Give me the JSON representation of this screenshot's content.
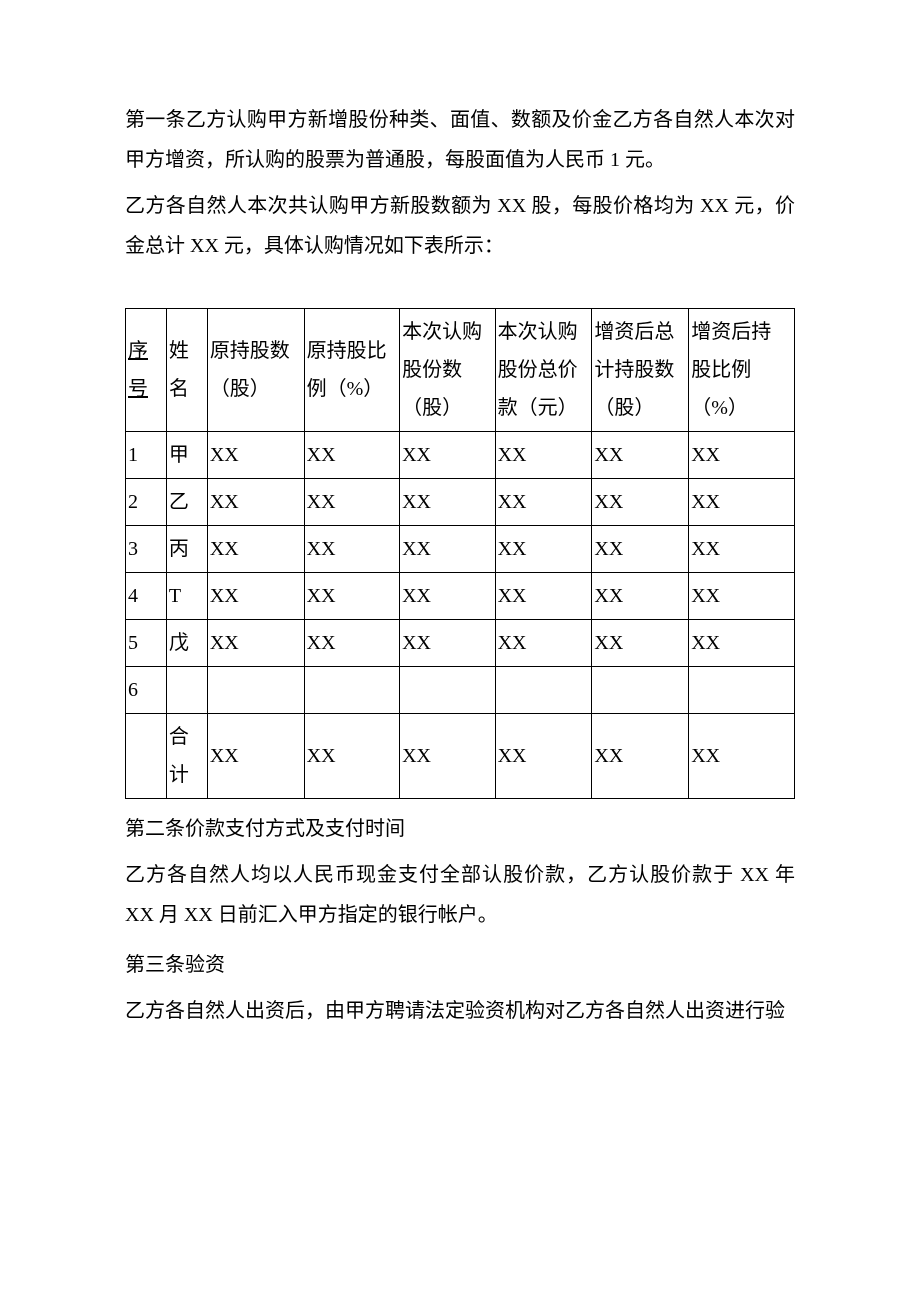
{
  "para1": "第一条乙方认购甲方新增股份种类、面值、数额及价金乙方各自然人本次对甲方增资，所认购的股票为普通股，每股面值为人民币 1 元。",
  "para2": "乙方各自然人本次共认购甲方新股数额为 XX 股，每股价格均为 XX 元，价金总计 XX 元，具体认购情况如下表所示：",
  "table": {
    "headers": {
      "c0a": "序",
      "c0b": "号",
      "c1": "姓名",
      "c2a": "原持股数",
      "c2b": "（股）",
      "c3a": "原持股比",
      "c3b": "例（%）",
      "c4a": "本次认购",
      "c4b": "股份数",
      "c4c": "（股）",
      "c5a": "本次认购",
      "c5b": "股份总价",
      "c5c": "款（元）",
      "c6a": "增资后总",
      "c6b": "计持股数",
      "c6c": "（股）",
      "c7a": "增资后持",
      "c7b": "股比例",
      "c7c": "（%）"
    },
    "rows": [
      {
        "n": "1",
        "name": "甲",
        "v2": "XX",
        "v3": "XX",
        "v4": "XX",
        "v5": "XX",
        "v6": "XX",
        "v7": "XX"
      },
      {
        "n": "2",
        "name": "乙",
        "v2": "XX",
        "v3": "XX",
        "v4": "XX",
        "v5": "XX",
        "v6": "XX",
        "v7": "XX"
      },
      {
        "n": "3",
        "name": "丙",
        "v2": "XX",
        "v3": "XX",
        "v4": "XX",
        "v5": "XX",
        "v6": "XX",
        "v7": "XX"
      },
      {
        "n": "4",
        "name": "T",
        "v2": "XX",
        "v3": "XX",
        "v4": "XX",
        "v5": "XX",
        "v6": "XX",
        "v7": "XX"
      },
      {
        "n": "5",
        "name": "戊",
        "v2": "XX",
        "v3": "XX",
        "v4": "XX",
        "v5": "XX",
        "v6": "XX",
        "v7": "XX"
      },
      {
        "n": "6",
        "name": "",
        "v2": "",
        "v3": "",
        "v4": "",
        "v5": "",
        "v6": "",
        "v7": ""
      }
    ],
    "total": {
      "label1": "合",
      "label2": "计",
      "v2": "XX",
      "v3": "XX",
      "v4": "XX",
      "v5": "XX",
      "v6": "XX",
      "v7": "XX"
    }
  },
  "section2_title": "第二条价款支付方式及支付时间",
  "section2_body": "乙方各自然人均以人民币现金支付全部认股价款，乙方认股价款于 XX 年 XX 月 XX 日前汇入甲方指定的银行帐户。",
  "section3_title": "第三条验资",
  "section3_body": "乙方各自然人出资后，由甲方聘请法定验资机构对乙方各自然人出资进行验"
}
